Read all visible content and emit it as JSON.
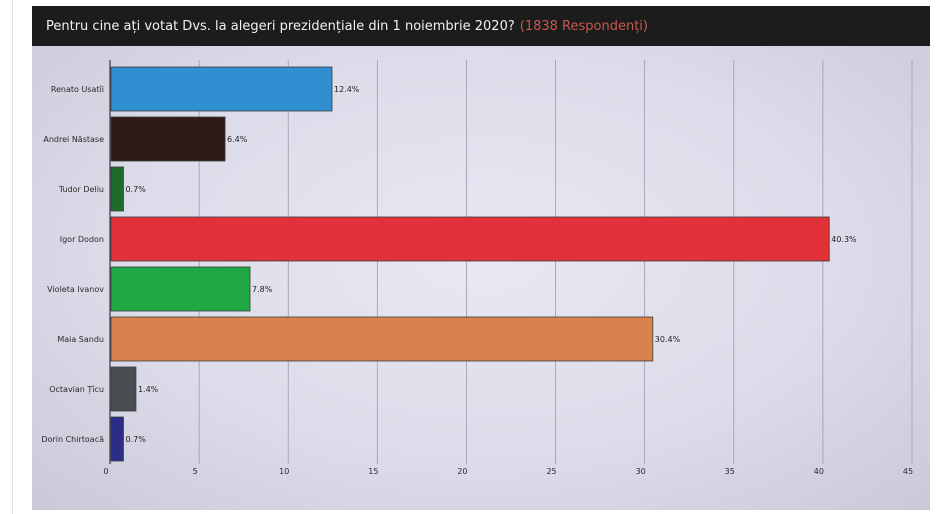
{
  "chart_data": {
    "type": "bar",
    "orientation": "horizontal",
    "title": "Pentru cine ați votat Dvs. la alegeri prezidențiale din 1 noiembrie 2020?",
    "subtitle": "(1838 Respondenți)",
    "categories": [
      "Renato Usatîi",
      "Andrei Năstase",
      "Tudor Deliu",
      "Igor Dodon",
      "Violeta Ivanov",
      "Maia Sandu",
      "Octavian Țîcu",
      "Dorin Chirtoacă"
    ],
    "values": [
      12.4,
      6.4,
      0.7,
      40.3,
      7.8,
      30.4,
      1.4,
      0.7
    ],
    "value_labels": [
      "12.4%",
      "6.4%",
      "0.7%",
      "40.3%",
      "7.8%",
      "30.4%",
      "1.4%",
      "0.7%"
    ],
    "colors": [
      "#2f8fd0",
      "#2e1a18",
      "#1f6b2c",
      "#e03238",
      "#1fa843",
      "#d8834e",
      "#4a4d52",
      "#2c2e86"
    ],
    "xlim": [
      0,
      45
    ],
    "xticks": [
      0,
      5,
      10,
      15,
      20,
      25,
      30,
      35,
      40,
      45
    ],
    "grid": true,
    "legend": "none"
  }
}
